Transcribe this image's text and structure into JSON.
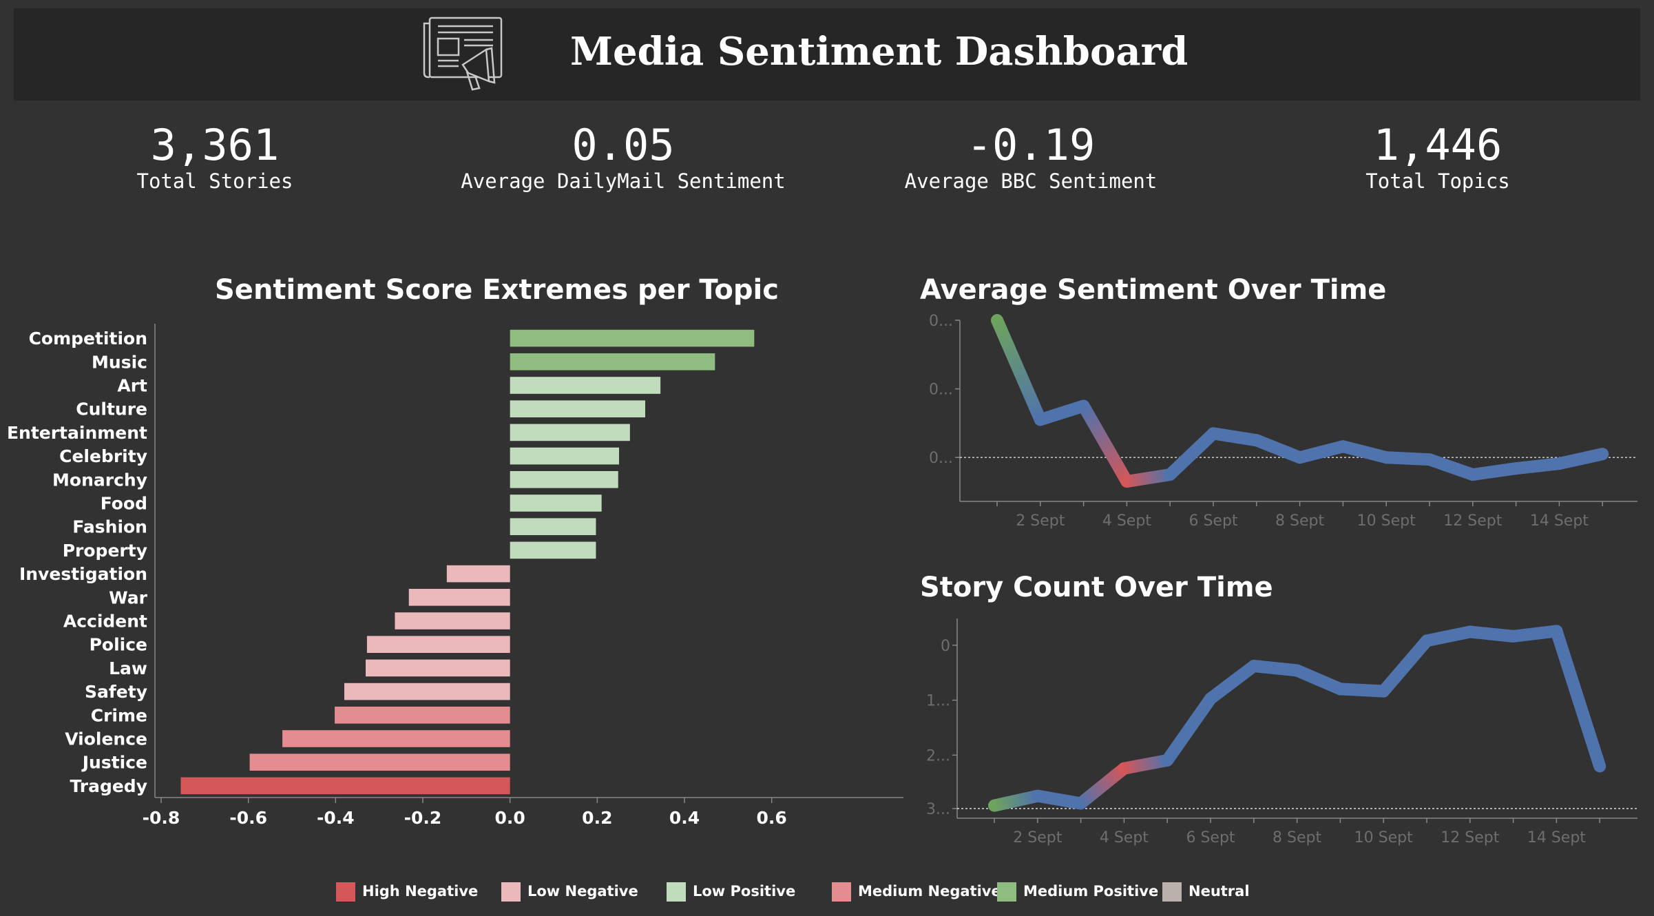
{
  "header": {
    "title": "Media Sentiment Dashboard",
    "logo_icon": "newspaper-megaphone-icon"
  },
  "kpis": [
    {
      "value": "3,361",
      "label": "Total Stories"
    },
    {
      "value": "0.05",
      "label": "Average DailyMail Sentiment"
    },
    {
      "value": "-0.19",
      "label": "Average BBC Sentiment"
    },
    {
      "value": "1,446",
      "label": "Total Topics"
    }
  ],
  "legend": [
    {
      "label": "High Negative",
      "color": "#d4575a"
    },
    {
      "label": "Low Negative",
      "color": "#ebb8bc"
    },
    {
      "label": "Low Positive",
      "color": "#c0dcbc"
    },
    {
      "label": "Medium Negative",
      "color": "#e48d90"
    },
    {
      "label": "Medium Positive",
      "color": "#8fbc7f"
    },
    {
      "label": "Neutral",
      "color": "#bab0ac"
    }
  ],
  "chart_data": [
    {
      "type": "bar",
      "orientation": "horizontal",
      "title": "Sentiment Score Extremes per Topic",
      "categories": [
        "Competition",
        "Music",
        "Art",
        "Culture",
        "Entertainment",
        "Celebrity",
        "Monarchy",
        "Food",
        "Fashion",
        "Property",
        "Investigation",
        "War",
        "Accident",
        "Police",
        "Law",
        "Safety",
        "Crime",
        "Violence",
        "Justice",
        "Tragedy"
      ],
      "values": [
        0.56,
        0.47,
        0.345,
        0.31,
        0.275,
        0.25,
        0.248,
        0.21,
        0.197,
        0.197,
        -0.145,
        -0.232,
        -0.264,
        -0.328,
        -0.331,
        -0.38,
        -0.402,
        -0.522,
        -0.597,
        -0.755
      ],
      "classes": [
        "Medium Positive",
        "Medium Positive",
        "Low Positive",
        "Low Positive",
        "Low Positive",
        "Low Positive",
        "Low Positive",
        "Low Positive",
        "Low Positive",
        "Low Positive",
        "Low Negative",
        "Low Negative",
        "Low Negative",
        "Low Negative",
        "Low Negative",
        "Low Negative",
        "Medium Negative",
        "Medium Negative",
        "Medium Negative",
        "High Negative"
      ],
      "xticks": [
        "-0.8",
        "-0.6",
        "-0.4",
        "-0.2",
        "0.0",
        "0.2",
        "0.4",
        "0.6"
      ],
      "xlim": [
        -0.8,
        0.62
      ]
    },
    {
      "type": "line",
      "title": "Average Sentiment Over Time",
      "x": [
        "1 Sept",
        "2 Sept",
        "3 Sept",
        "4 Sept",
        "5 Sept",
        "6 Sept",
        "7 Sept",
        "8 Sept",
        "9 Sept",
        "10 Sept",
        "11 Sept",
        "12 Sept",
        "13 Sept",
        "14 Sept",
        "15 Sept"
      ],
      "values": [
        0.2,
        0.055,
        0.075,
        -0.035,
        -0.025,
        0.035,
        0.025,
        0.0,
        0.016,
        0.0,
        -0.003,
        -0.025,
        -0.016,
        -0.009,
        0.005
      ],
      "xticks": [
        "2 Sept",
        "4 Sept",
        "6 Sept",
        "8 Sept",
        "10 Sept",
        "12 Sept",
        "14 Sept"
      ],
      "yticks": [
        "0...",
        "0...",
        "0..."
      ],
      "ylim": [
        -0.05,
        0.2
      ]
    },
    {
      "type": "line",
      "title": "Story Count Over Time",
      "x": [
        "1 Sept",
        "2 Sept",
        "3 Sept",
        "4 Sept",
        "5 Sept",
        "6 Sept",
        "7 Sept",
        "8 Sept",
        "9 Sept",
        "10 Sept",
        "11 Sept",
        "12 Sept",
        "13 Sept",
        "14 Sept",
        "15 Sept"
      ],
      "values": [
        20,
        85,
        35,
        270,
        325,
        740,
        960,
        930,
        805,
        790,
        1130,
        1190,
        1160,
        1195,
        285
      ],
      "xticks": [
        "2 Sept",
        "4 Sept",
        "6 Sept",
        "8 Sept",
        "10 Sept",
        "12 Sept",
        "14 Sept"
      ],
      "yticks": [
        "0",
        "1...",
        "2...",
        "3..."
      ],
      "ylim": [
        0,
        1280
      ]
    }
  ]
}
